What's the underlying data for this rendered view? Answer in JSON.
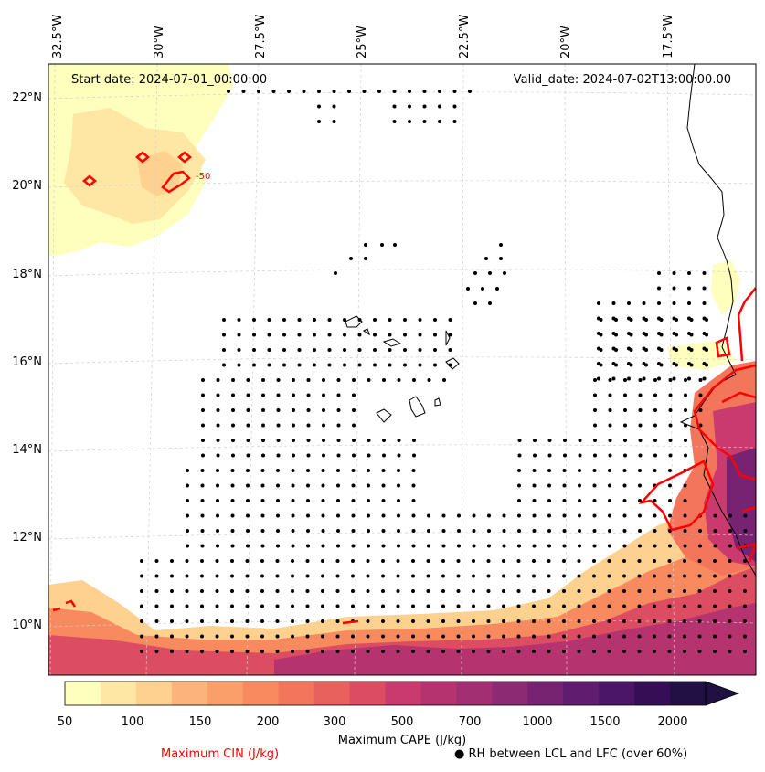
{
  "map": {
    "start_date": "Start date: 2024-07-01_00:00:00",
    "valid_date": "Valid_date: 2024-07-02T13:00:00.00",
    "lon_labels": [
      "32.5°W",
      "30°W",
      "27.5°W",
      "25°W",
      "22.5°W",
      "20°W",
      "17.5°W"
    ],
    "lat_labels": [
      "22°N",
      "20°N",
      "18°N",
      "16°N",
      "14°N",
      "12°N",
      "10°N"
    ],
    "cin_contour_label": "-50"
  },
  "colorbar": {
    "label": "Maximum CAPE (J/kg)",
    "ticks": [
      "50",
      "100",
      "150",
      "200",
      "300",
      "500",
      "700",
      "1000",
      "1500",
      "2000"
    ],
    "colors": [
      "#fefebd",
      "#fee7a4",
      "#fed18f",
      "#fdb47b",
      "#fb9f6a",
      "#f88a5f",
      "#f3765c",
      "#e8615c",
      "#dd4d61",
      "#c93b6e",
      "#b5336f",
      "#a12f71",
      "#8c2a73",
      "#772372",
      "#601c6e",
      "#4b1568",
      "#340f55",
      "#201142"
    ]
  },
  "legend": {
    "cin_label": "Maximum CIN (J/kg)",
    "cin_color": "#ff0000",
    "rh_label": "RH between LCL and LFC (over 60%)",
    "rh_marker": "●"
  }
}
